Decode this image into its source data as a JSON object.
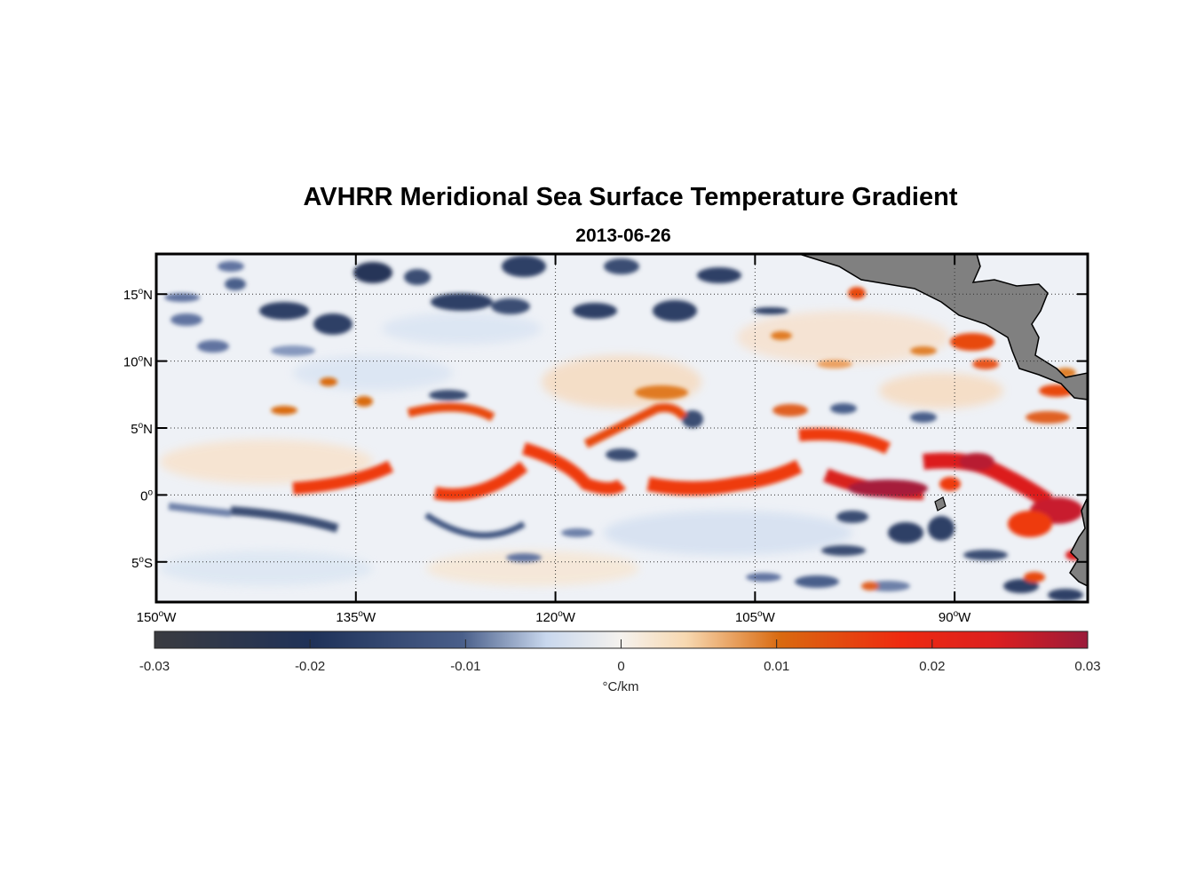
{
  "title": "AVHRR Meridional Sea Surface Temperature Gradient",
  "subtitle": "2013-06-26",
  "map": {
    "lon_range": [
      -150,
      -80
    ],
    "lat_range": [
      -8,
      18
    ],
    "lat_ticks": [
      {
        "value": 15,
        "num": "15",
        "hemi": "N"
      },
      {
        "value": 10,
        "num": "10",
        "hemi": "N"
      },
      {
        "value": 5,
        "num": "5",
        "hemi": "N"
      },
      {
        "value": 0,
        "num": "0",
        "hemi": ""
      },
      {
        "value": -5,
        "num": "5",
        "hemi": "S"
      }
    ],
    "lon_ticks": [
      {
        "value": -150,
        "num": "150",
        "hemi": "W"
      },
      {
        "value": -135,
        "num": "135",
        "hemi": "W"
      },
      {
        "value": -120,
        "num": "120",
        "hemi": "W"
      },
      {
        "value": -105,
        "num": "105",
        "hemi": "W"
      },
      {
        "value": -90,
        "num": "90",
        "hemi": "W"
      }
    ],
    "land_color": "#808080",
    "gridlines": "dotted"
  },
  "colorbar": {
    "range": [
      -0.03,
      0.03
    ],
    "tick_labels": [
      "-0.03",
      "-0.02",
      "-0.01",
      "0",
      "0.01",
      "0.02",
      "0.03"
    ],
    "tick_values": [
      -0.03,
      -0.02,
      -0.01,
      0,
      0.01,
      0.02,
      0.03
    ],
    "units": "°C/km",
    "colors": [
      "#3a3b40",
      "#1f3259",
      "#4a5f8a",
      "#c9d8ee",
      "#f5efe9",
      "#f7d8b0",
      "#d96a10",
      "#ee2a10",
      "#dc1f1f",
      "#9b1b3a"
    ]
  }
}
